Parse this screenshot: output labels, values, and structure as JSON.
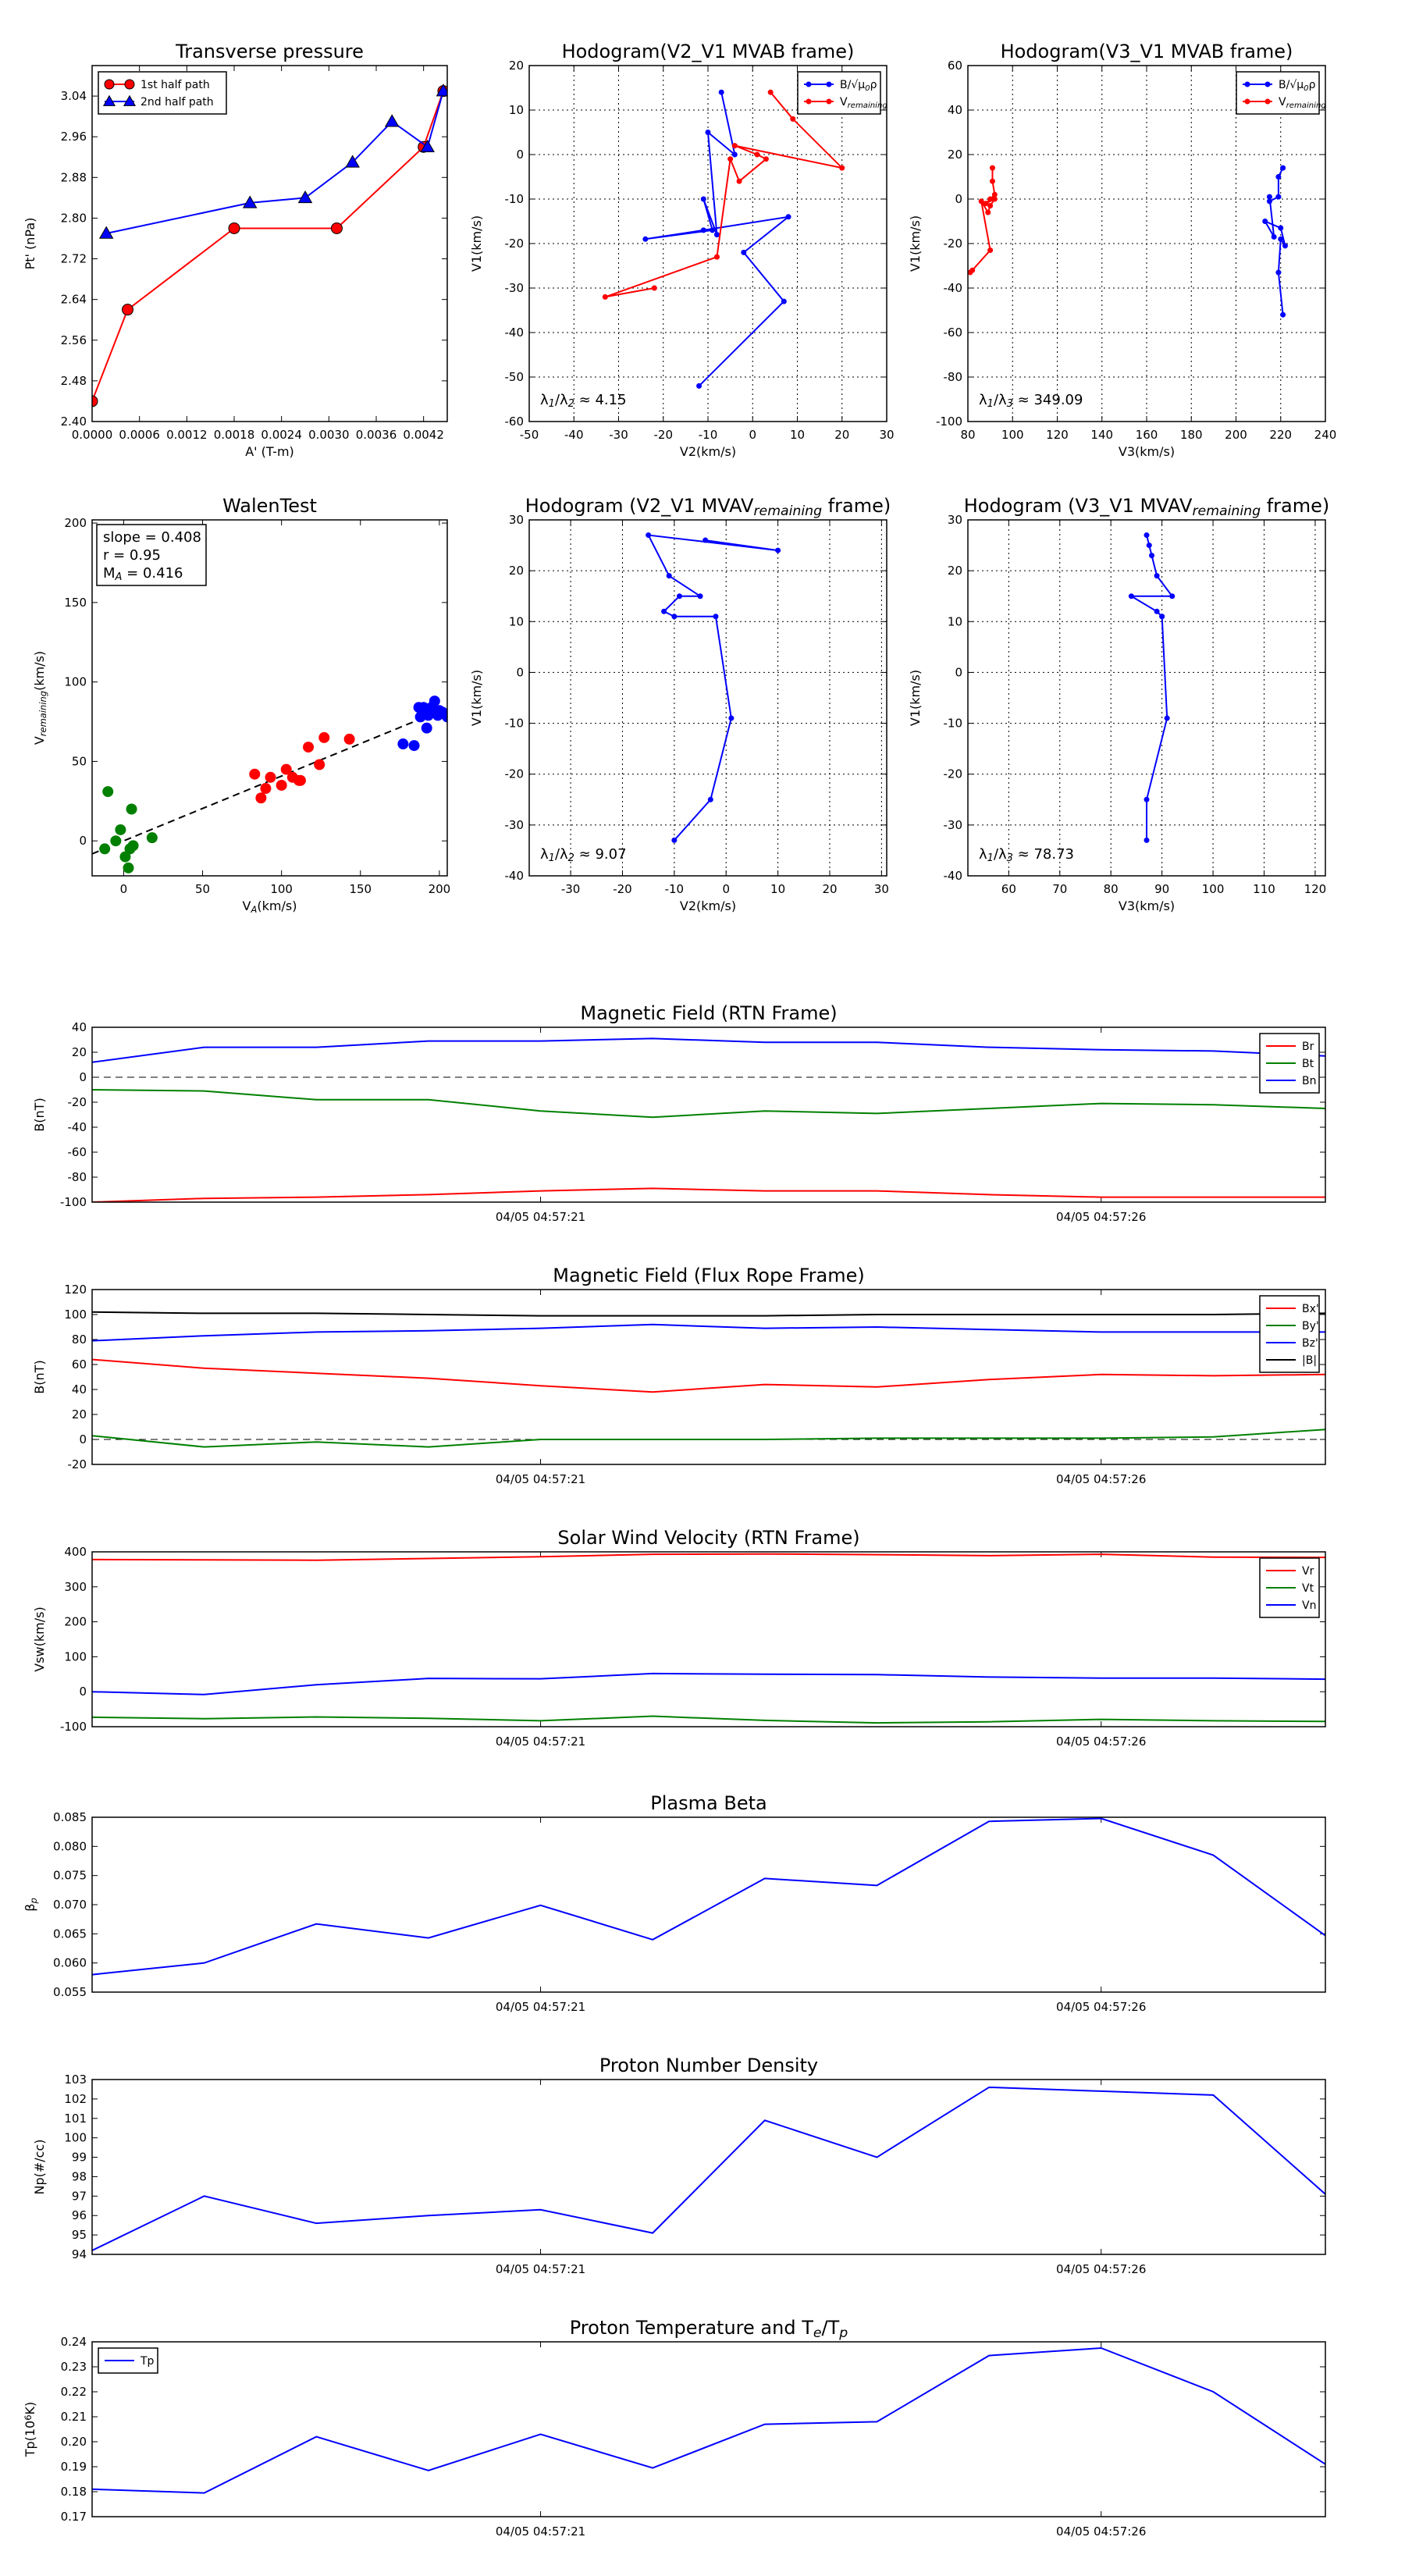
{
  "figure": {
    "panel_count": 12
  },
  "chart_data": [
    {
      "id": "transverse-pressure",
      "type": "line",
      "title": "Transverse pressure",
      "xlabel": "A' (T-m)",
      "ylabel": "Pt' (nPa)",
      "xlim": [
        0,
        0.0045
      ],
      "ylim": [
        2.4,
        3.1
      ],
      "xticks": [
        0,
        0.0006,
        0.0012,
        0.0018,
        0.0024,
        0.003,
        0.0036,
        0.0042
      ],
      "xticklabels": [
        "0.0000",
        "0.0006",
        "0.0012",
        "0.0018",
        "0.0024",
        "0.0030",
        "0.0036",
        "0.0042"
      ],
      "yticks": [
        2.4,
        2.48,
        2.56,
        2.64,
        2.72,
        2.8,
        2.88,
        2.96,
        3.04
      ],
      "yticklabels": [
        "2.40",
        "2.48",
        "2.56",
        "2.64",
        "2.72",
        "2.80",
        "2.88",
        "2.96",
        "3.04"
      ],
      "legend": {
        "position": "top-left"
      },
      "series": [
        {
          "name": "1st half path",
          "color": "#ff0000",
          "marker": "circle",
          "x": [
            0.0,
            0.00045,
            0.0018,
            0.0031,
            0.0042,
            0.00445
          ],
          "y": [
            2.44,
            2.62,
            2.78,
            2.78,
            2.94,
            3.05
          ]
        },
        {
          "name": "2nd half path",
          "color": "#0000ff",
          "marker": "triangle",
          "x": [
            0.00018,
            0.002,
            0.0027,
            0.0033,
            0.0038,
            0.00425,
            0.00445
          ],
          "y": [
            2.77,
            2.83,
            2.84,
            2.91,
            2.99,
            2.94,
            3.05
          ]
        }
      ]
    },
    {
      "id": "hodogram-v2-v1-mvab",
      "type": "line",
      "title": "Hodogram(V2_V1 MVAB frame)",
      "xlabel": "V2(km/s)",
      "ylabel": "V1(km/s)",
      "xlim": [
        -50,
        30
      ],
      "ylim": [
        -60,
        20
      ],
      "xticks": [
        -50,
        -40,
        -30,
        -20,
        -10,
        0,
        10,
        20,
        30
      ],
      "yticks": [
        -60,
        -50,
        -40,
        -30,
        -20,
        -10,
        0,
        10,
        20
      ],
      "grid": true,
      "legend": {
        "position": "top-right"
      },
      "annotation": "λ1/λ2 ≈ 4.15",
      "series": [
        {
          "name": "B/√(μ0ρ)",
          "color": "#0000ff",
          "x": [
            -7,
            -4,
            -10,
            -8,
            -11,
            -9,
            -24,
            -11,
            8,
            -2,
            7,
            -12
          ],
          "y": [
            14,
            0,
            5,
            -18,
            -10,
            -17,
            -19,
            -17,
            -14,
            -22,
            -33,
            -52
          ]
        },
        {
          "name": "V_remaining",
          "color": "#ff0000",
          "x": [
            4,
            9,
            20,
            -4,
            1,
            3,
            -3,
            -5,
            -8,
            -33,
            -22
          ],
          "y": [
            14,
            8,
            -3,
            2,
            0,
            -1,
            -6,
            -1,
            -23,
            -32,
            -30
          ]
        }
      ]
    },
    {
      "id": "hodogram-v3-v1-mvab",
      "type": "line",
      "title": "Hodogram(V3_V1 MVAB frame)",
      "xlabel": "V3(km/s)",
      "ylabel": "V1(km/s)",
      "xlim": [
        80,
        240
      ],
      "ylim": [
        -100,
        60
      ],
      "xticks": [
        80,
        100,
        120,
        140,
        160,
        180,
        200,
        220,
        240
      ],
      "yticks": [
        -100,
        -80,
        -60,
        -40,
        -20,
        0,
        20,
        40,
        60
      ],
      "grid": true,
      "legend": {
        "position": "top-right"
      },
      "annotation": "λ1/λ3 ≈ 349.09",
      "series": [
        {
          "name": "B/√(μ0ρ)",
          "color": "#0000ff",
          "x": [
            221,
            219,
            219,
            215,
            215,
            217,
            213,
            220,
            222,
            220,
            219,
            221
          ],
          "y": [
            14,
            10,
            1,
            -1,
            1,
            -17,
            -10,
            -13,
            -21,
            -18,
            -33,
            -52
          ]
        },
        {
          "name": "V_remaining",
          "color": "#ff0000",
          "x": [
            91,
            91,
            92,
            90,
            88,
            92,
            90,
            89,
            86,
            90,
            82,
            81
          ],
          "y": [
            14,
            8,
            2,
            0,
            -2,
            0,
            -3,
            -6,
            -1,
            -23,
            -32,
            -33
          ]
        }
      ]
    },
    {
      "id": "walen-test",
      "type": "scatter",
      "title": "WalenTest",
      "xlabel": "V_A(km/s)",
      "ylabel": "V_remaining(km/s)",
      "xlim": [
        -20,
        205
      ],
      "ylim": [
        -22,
        202
      ],
      "xticks": [
        0,
        50,
        100,
        150,
        200
      ],
      "yticks": [
        0,
        50,
        100,
        150,
        200
      ],
      "stats": [
        "slope = 0.408",
        "r = 0.95",
        "M_A = 0.416"
      ],
      "fit_line": {
        "slope": 0.408,
        "intercept": 0,
        "x": [
          -20,
          205
        ]
      },
      "series": [
        {
          "name": "green",
          "color": "#008000",
          "x": [
            -12,
            -10,
            -5,
            -2,
            1,
            3,
            4,
            5,
            6,
            18
          ],
          "y": [
            -5,
            31,
            0,
            7,
            -10,
            -17,
            -5,
            20,
            -3,
            2
          ]
        },
        {
          "name": "red",
          "color": "#ff0000",
          "x": [
            83,
            87,
            90,
            93,
            100,
            103,
            107,
            111,
            112,
            117,
            124,
            127,
            143
          ],
          "y": [
            42,
            27,
            33,
            40,
            35,
            45,
            40,
            38,
            38,
            59,
            48,
            65,
            64
          ]
        },
        {
          "name": "blue",
          "color": "#0000ff",
          "x": [
            177,
            184,
            187,
            188,
            190,
            192,
            193,
            195,
            197,
            199,
            200,
            202,
            205
          ],
          "y": [
            61,
            60,
            84,
            78,
            84,
            71,
            79,
            84,
            88,
            79,
            82,
            81,
            78
          ]
        }
      ]
    },
    {
      "id": "hodogram-v2-v1-mvav",
      "type": "line",
      "title": "Hodogram (V2_V1 MVAV_remaining frame)",
      "xlabel": "V2(km/s)",
      "ylabel": "V1(km/s)",
      "xlim": [
        -38,
        31
      ],
      "ylim": [
        -40,
        30
      ],
      "xticks": [
        -30,
        -20,
        -10,
        0,
        10,
        20,
        30
      ],
      "yticks": [
        -40,
        -30,
        -20,
        -10,
        0,
        10,
        20,
        30
      ],
      "grid": true,
      "annotation": "λ1/λ2 ≈ 9.07",
      "series": [
        {
          "name": "hodogram",
          "color": "#0000ff",
          "x": [
            -4,
            10,
            -15,
            -11,
            -5,
            -9,
            -12,
            -10,
            -2,
            1,
            -3,
            -10
          ],
          "y": [
            26,
            24,
            27,
            19,
            15,
            15,
            12,
            11,
            11,
            -9,
            -25,
            -33
          ]
        }
      ]
    },
    {
      "id": "hodogram-v3-v1-mvav",
      "type": "line",
      "title": "Hodogram (V3_V1 MVAV_remaining frame)",
      "xlabel": "V3(km/s)",
      "ylabel": "V1(km/s)",
      "xlim": [
        52,
        122
      ],
      "ylim": [
        -40,
        30
      ],
      "xticks": [
        60,
        70,
        80,
        90,
        100,
        110,
        120
      ],
      "yticks": [
        -40,
        -30,
        -20,
        -10,
        0,
        10,
        20,
        30
      ],
      "grid": true,
      "annotation": "λ1/λ3 ≈ 78.73",
      "series": [
        {
          "name": "hodogram",
          "color": "#0000ff",
          "x": [
            87,
            87.5,
            88,
            89,
            92,
            84,
            89,
            90,
            90,
            91,
            87,
            87
          ],
          "y": [
            27,
            25,
            23,
            19,
            15,
            15,
            12,
            11,
            11,
            -9,
            -25,
            -33
          ]
        }
      ]
    },
    {
      "id": "magnetic-field-rtn",
      "type": "line",
      "title": "Magnetic Field (RTN Frame)",
      "ylabel": "B(nT)",
      "xlim": [
        0,
        11
      ],
      "ylim": [
        -100,
        40
      ],
      "yticks": [
        -100,
        -80,
        -60,
        -40,
        -20,
        0,
        20,
        40
      ],
      "xticks": [
        4,
        9
      ],
      "xticklabels": [
        "04/05 04:57:21",
        "04/05 04:57:26"
      ],
      "zero_line": true,
      "legend": {
        "position": "top-right"
      },
      "x": [
        0,
        1,
        2,
        3,
        4,
        5,
        6,
        7,
        8,
        9,
        10,
        11
      ],
      "series": [
        {
          "name": "Br",
          "color": "#ff0000",
          "values": [
            -100,
            -97,
            -96,
            -94,
            -91,
            -89,
            -91,
            -91,
            -94,
            -96,
            -96,
            -96
          ]
        },
        {
          "name": "Bt",
          "color": "#008000",
          "values": [
            -10,
            -11,
            -18,
            -18,
            -27,
            -32,
            -27,
            -29,
            -25,
            -21,
            -22,
            -25
          ]
        },
        {
          "name": "Bn",
          "color": "#0000ff",
          "values": [
            12,
            24,
            24,
            29,
            29,
            31,
            28,
            28,
            24,
            22,
            21,
            17
          ]
        }
      ]
    },
    {
      "id": "magnetic-field-flux-rope",
      "type": "line",
      "title": "Magnetic Field (Flux Rope Frame)",
      "ylabel": "B(nT)",
      "xlim": [
        0,
        11
      ],
      "ylim": [
        -20,
        120
      ],
      "yticks": [
        -20,
        0,
        20,
        40,
        60,
        80,
        100,
        120
      ],
      "xticks": [
        4,
        9
      ],
      "xticklabels": [
        "04/05 04:57:21",
        "04/05 04:57:26"
      ],
      "zero_line": true,
      "legend": {
        "position": "top-right"
      },
      "x": [
        0,
        1,
        2,
        3,
        4,
        5,
        6,
        7,
        8,
        9,
        10,
        11
      ],
      "series": [
        {
          "name": "Bx'",
          "color": "#ff0000",
          "values": [
            64,
            57,
            53,
            49,
            43,
            38,
            44,
            42,
            48,
            52,
            51,
            52
          ]
        },
        {
          "name": "By'",
          "color": "#008000",
          "values": [
            3,
            -6,
            -2,
            -6,
            0,
            0,
            0,
            1,
            1,
            1,
            2,
            8
          ]
        },
        {
          "name": "Bz'",
          "color": "#0000ff",
          "values": [
            79,
            83,
            86,
            87,
            89,
            92,
            89,
            90,
            88,
            86,
            86,
            86
          ]
        },
        {
          "name": "|B|",
          "color": "#000000",
          "values": [
            102,
            101,
            101,
            100,
            99,
            99,
            99,
            100,
            100,
            100,
            100,
            101
          ]
        }
      ]
    },
    {
      "id": "solar-wind-velocity",
      "type": "line",
      "title": "Solar Wind Velocity (RTN Frame)",
      "ylabel": "Vsw(km/s)",
      "xlim": [
        0,
        11
      ],
      "ylim": [
        -100,
        400
      ],
      "yticks": [
        -100,
        0,
        100,
        200,
        300,
        400
      ],
      "xticks": [
        4,
        9
      ],
      "xticklabels": [
        "04/05 04:57:21",
        "04/05 04:57:26"
      ],
      "legend": {
        "position": "top-right"
      },
      "x": [
        0,
        1,
        2,
        3,
        4,
        5,
        6,
        7,
        8,
        9,
        10,
        11
      ],
      "series": [
        {
          "name": "Vr",
          "color": "#ff0000",
          "values": [
            378,
            377,
            376,
            381,
            386,
            393,
            394,
            392,
            389,
            393,
            385,
            384
          ]
        },
        {
          "name": "Vt",
          "color": "#008000",
          "values": [
            -73,
            -77,
            -72,
            -76,
            -83,
            -70,
            -82,
            -89,
            -86,
            -79,
            -83,
            -85
          ]
        },
        {
          "name": "Vn",
          "color": "#0000ff",
          "values": [
            0,
            -8,
            20,
            38,
            37,
            52,
            50,
            49,
            42,
            39,
            39,
            36
          ]
        }
      ]
    },
    {
      "id": "plasma-beta",
      "type": "line",
      "title": "Plasma Beta",
      "ylabel": "βp",
      "xlim": [
        0,
        11
      ],
      "ylim": [
        0.055,
        0.085
      ],
      "yticks": [
        0.055,
        0.06,
        0.065,
        0.07,
        0.075,
        0.08,
        0.085
      ],
      "yticklabels": [
        "0.055",
        "0.060",
        "0.065",
        "0.070",
        "0.075",
        "0.080",
        "0.085"
      ],
      "xticks": [
        4,
        9
      ],
      "xticklabels": [
        "04/05 04:57:21",
        "04/05 04:57:26"
      ],
      "x": [
        0,
        1,
        2,
        3,
        4,
        5,
        6,
        7,
        8,
        9,
        10,
        11
      ],
      "series": [
        {
          "name": "beta",
          "color": "#0000ff",
          "values": [
            0.058,
            0.06,
            0.0667,
            0.0643,
            0.0699,
            0.064,
            0.0745,
            0.0733,
            0.0843,
            0.0848,
            0.0785,
            0.0647
          ]
        }
      ]
    },
    {
      "id": "proton-number-density",
      "type": "line",
      "title": "Proton Number Density",
      "ylabel": "Np(#/cc)",
      "xlim": [
        0,
        11
      ],
      "ylim": [
        94,
        103
      ],
      "yticks": [
        94,
        95,
        96,
        97,
        98,
        99,
        100,
        101,
        102,
        103
      ],
      "xticks": [
        4,
        9
      ],
      "xticklabels": [
        "04/05 04:57:21",
        "04/05 04:57:26"
      ],
      "x": [
        0,
        1,
        2,
        3,
        4,
        5,
        6,
        7,
        8,
        9,
        10,
        11
      ],
      "series": [
        {
          "name": "Np",
          "color": "#0000ff",
          "values": [
            94.2,
            97.0,
            95.6,
            96.0,
            96.3,
            95.1,
            100.9,
            99.0,
            102.6,
            102.4,
            102.2,
            97.1
          ]
        }
      ]
    },
    {
      "id": "proton-temperature",
      "type": "line",
      "title": "Proton Temperature and Te/Tp",
      "ylabel": "Tp(10^6 K)",
      "xlim": [
        0,
        11
      ],
      "ylim": [
        0.17,
        0.24
      ],
      "yticks": [
        0.17,
        0.18,
        0.19,
        0.2,
        0.21,
        0.22,
        0.23,
        0.24
      ],
      "yticklabels": [
        "0.17",
        "0.18",
        "0.19",
        "0.20",
        "0.21",
        "0.22",
        "0.23",
        "0.24"
      ],
      "xticks": [
        4,
        9
      ],
      "xticklabels": [
        "04/05 04:57:21",
        "04/05 04:57:26"
      ],
      "legend": {
        "position": "top-left"
      },
      "x": [
        0,
        1,
        2,
        3,
        4,
        5,
        6,
        7,
        8,
        9,
        10,
        11
      ],
      "series": [
        {
          "name": "Tp",
          "color": "#0000ff",
          "values": [
            0.181,
            0.1795,
            0.202,
            0.1885,
            0.203,
            0.1895,
            0.207,
            0.208,
            0.2345,
            0.2375,
            0.22,
            0.191
          ]
        }
      ]
    }
  ]
}
